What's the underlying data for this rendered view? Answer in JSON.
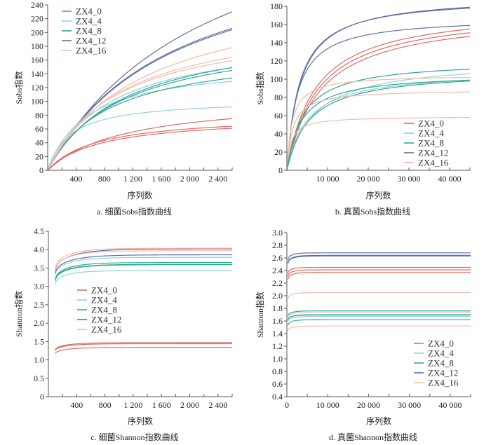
{
  "figure": {
    "groups": [
      {
        "name": "ZX4_0",
        "color": "#e06a62"
      },
      {
        "name": "ZX4_4",
        "color": "#8fd2df"
      },
      {
        "name": "ZX4_8",
        "color": "#2fa892"
      },
      {
        "name": "ZX4_12",
        "color": "#5f6fa3"
      },
      {
        "name": "ZX4_16",
        "color": "#f3bba9"
      }
    ]
  },
  "chart_data": [
    {
      "id": "a",
      "type": "line",
      "caption": "a.  细菌Sobs指数曲线",
      "xlabel": "序列数",
      "ylabel": "Sobs指数",
      "xlim": [
        0,
        2600
      ],
      "ylim": [
        0,
        240
      ],
      "xticks": [
        400,
        800,
        1200,
        1600,
        2000,
        2400
      ],
      "xtick_labels": [
        "400",
        "800",
        "1 200",
        "1 600",
        "2 000",
        "2 400"
      ],
      "xminor_step": 200,
      "yticks": [
        0,
        20,
        40,
        60,
        80,
        100,
        120,
        140,
        160,
        180,
        200,
        220,
        240
      ],
      "ytick_labels": [
        "0",
        "20",
        "40",
        "60",
        "80",
        "100",
        "120",
        "140",
        "160",
        "180",
        "200",
        "220",
        "240"
      ],
      "legend": "top-left",
      "curve_model": "rarefaction",
      "series": [
        {
          "group": "ZX4_0",
          "x_start": 0,
          "x_end": 2600,
          "y_end": 75,
          "k": 1100
        },
        {
          "group": "ZX4_0",
          "x_start": 0,
          "x_end": 2600,
          "y_end": 64,
          "k": 700
        },
        {
          "group": "ZX4_0",
          "x_start": 0,
          "x_end": 2600,
          "y_end": 61,
          "k": 750
        },
        {
          "group": "ZX4_4",
          "x_start": 0,
          "x_end": 2600,
          "y_end": 149,
          "k": 900
        },
        {
          "group": "ZX4_4",
          "x_start": 0,
          "x_end": 2600,
          "y_end": 129,
          "k": 550
        },
        {
          "group": "ZX4_4",
          "x_start": 0,
          "x_end": 2600,
          "y_end": 92,
          "k": 320
        },
        {
          "group": "ZX4_8",
          "x_start": 0,
          "x_end": 2600,
          "y_end": 149,
          "k": 1100
        },
        {
          "group": "ZX4_8",
          "x_start": 0,
          "x_end": 2600,
          "y_end": 145,
          "k": 1050
        },
        {
          "group": "ZX4_8",
          "x_start": 0,
          "x_end": 2600,
          "y_end": 134,
          "k": 850
        },
        {
          "group": "ZX4_12",
          "x_start": 0,
          "x_end": 2600,
          "y_end": 230,
          "k": 2300
        },
        {
          "group": "ZX4_12",
          "x_start": 0,
          "x_end": 2600,
          "y_end": 206,
          "k": 1750
        },
        {
          "group": "ZX4_12",
          "x_start": 0,
          "x_end": 2600,
          "y_end": 204,
          "k": 1750
        },
        {
          "group": "ZX4_16",
          "x_start": 0,
          "x_end": 2600,
          "y_end": 178,
          "k": 1350
        },
        {
          "group": "ZX4_16",
          "x_start": 0,
          "x_end": 2600,
          "y_end": 164,
          "k": 1050
        },
        {
          "group": "ZX4_16",
          "x_start": 0,
          "x_end": 2600,
          "y_end": 159,
          "k": 950
        }
      ]
    },
    {
      "id": "b",
      "type": "line",
      "caption": "b.  真菌Sobs指数曲线",
      "xlabel": "序列数",
      "ylabel": "Sobs指数",
      "xlim": [
        0,
        45000
      ],
      "ylim": [
        0,
        180
      ],
      "xticks": [
        10000,
        20000,
        30000,
        40000
      ],
      "xtick_labels": [
        "10 000",
        "20 000",
        "30 000",
        "40 000"
      ],
      "xminor_step": 5000,
      "yticks": [
        0,
        20,
        40,
        60,
        80,
        100,
        120,
        140,
        160,
        180
      ],
      "ytick_labels": [
        "0",
        "20",
        "40",
        "60",
        "80",
        "100",
        "120",
        "140",
        "160",
        "180"
      ],
      "legend": "bottom-right",
      "curve_model": "rarefaction",
      "series": [
        {
          "group": "ZX4_0",
          "x_start": 0,
          "x_end": 45000,
          "y_end": 155,
          "k": 7000
        },
        {
          "group": "ZX4_0",
          "x_start": 0,
          "x_end": 45000,
          "y_end": 151,
          "k": 7500
        },
        {
          "group": "ZX4_0",
          "x_start": 0,
          "x_end": 45000,
          "y_end": 147,
          "k": 8000
        },
        {
          "group": "ZX4_4",
          "x_start": 0,
          "x_end": 45000,
          "y_end": 106,
          "k": 6500
        },
        {
          "group": "ZX4_4",
          "x_start": 0,
          "x_end": 45000,
          "y_end": 99,
          "k": 5000
        },
        {
          "group": "ZX4_8",
          "x_start": 0,
          "x_end": 45000,
          "y_end": 111,
          "k": 4000
        },
        {
          "group": "ZX4_8",
          "x_start": 0,
          "x_end": 45000,
          "y_end": 99,
          "k": 3500
        },
        {
          "group": "ZX4_8",
          "x_start": 0,
          "x_end": 45000,
          "y_end": 98,
          "k": 5500
        },
        {
          "group": "ZX4_12",
          "x_start": 0,
          "x_end": 45000,
          "y_end": 179,
          "k": 3300
        },
        {
          "group": "ZX4_12",
          "x_start": 0,
          "x_end": 45000,
          "y_end": 178,
          "k": 3100
        },
        {
          "group": "ZX4_12",
          "x_start": 0,
          "x_end": 45000,
          "y_end": 159,
          "k": 2600
        },
        {
          "group": "ZX4_16",
          "x_start": 0,
          "x_end": 45000,
          "y_end": 102,
          "k": 1300
        },
        {
          "group": "ZX4_16",
          "x_start": 0,
          "x_end": 45000,
          "y_end": 86,
          "k": 1400
        },
        {
          "group": "ZX4_16",
          "x_start": 0,
          "x_end": 45000,
          "y_end": 58,
          "k": 1000
        }
      ]
    },
    {
      "id": "c",
      "type": "line",
      "caption": "c.  细菌Shannon指数曲线",
      "xlabel": "序列数",
      "ylabel": "Shannon指数",
      "xlim": [
        0,
        2600
      ],
      "ylim": [
        0,
        4.5
      ],
      "xticks": [
        400,
        800,
        1200,
        1600,
        2000,
        2400
      ],
      "xtick_labels": [
        "400",
        "800",
        "1 200",
        "1 600",
        "2 000",
        "2 400"
      ],
      "xminor_step": 200,
      "yticks": [
        0,
        0.5,
        1.0,
        1.5,
        2.0,
        2.5,
        3.0,
        3.5,
        4.0,
        4.5
      ],
      "ytick_labels": [
        "0",
        "0.5",
        "1.0",
        "1.5",
        "2.0",
        "2.5",
        "3.0",
        "3.5",
        "4.0",
        "4.5"
      ],
      "legend": "center-left",
      "curve_model": "plateau",
      "series": [
        {
          "group": "ZX4_0",
          "x_start": 100,
          "x_end": 2600,
          "y_start": 1.27,
          "y_end": 1.47,
          "k": 250
        },
        {
          "group": "ZX4_0",
          "x_start": 100,
          "x_end": 2600,
          "y_start": 1.25,
          "y_end": 1.44,
          "k": 250
        },
        {
          "group": "ZX4_0",
          "x_start": 100,
          "x_end": 2600,
          "y_start": 1.17,
          "y_end": 1.34,
          "k": 250
        },
        {
          "group": "ZX4_4",
          "x_start": 100,
          "x_end": 2600,
          "y_start": 3.32,
          "y_end": 3.79,
          "k": 300
        },
        {
          "group": "ZX4_4",
          "x_start": 100,
          "x_end": 2600,
          "y_start": 3.07,
          "y_end": 3.43,
          "k": 250
        },
        {
          "group": "ZX4_8",
          "x_start": 100,
          "x_end": 2600,
          "y_start": 3.18,
          "y_end": 3.65,
          "k": 280
        },
        {
          "group": "ZX4_8",
          "x_start": 100,
          "x_end": 2600,
          "y_start": 3.17,
          "y_end": 3.6,
          "k": 280
        },
        {
          "group": "ZX4_8",
          "x_start": 100,
          "x_end": 2600,
          "y_start": 3.15,
          "y_end": 3.59,
          "k": 280
        },
        {
          "group": "ZX4_12",
          "x_start": 100,
          "x_end": 2600,
          "y_start": 3.42,
          "y_end": 4.02,
          "k": 350
        },
        {
          "group": "ZX4_12",
          "x_start": 100,
          "x_end": 2600,
          "y_start": 3.35,
          "y_end": 3.86,
          "k": 330
        },
        {
          "group": "ZX4_16",
          "x_start": 100,
          "x_end": 2600,
          "y_start": 3.5,
          "y_end": 4.04,
          "k": 300
        },
        {
          "group": "ZX4_16",
          "x_start": 100,
          "x_end": 2600,
          "y_start": 3.44,
          "y_end": 3.97,
          "k": 300
        }
      ]
    },
    {
      "id": "d",
      "type": "line",
      "caption": "d.  真菌Shannon指数曲线",
      "xlabel": "序列数",
      "ylabel": "Shannon指数",
      "xlim": [
        0,
        45000
      ],
      "ylim": [
        0.4,
        3.0
      ],
      "xticks": [
        0,
        10000,
        20000,
        30000,
        40000
      ],
      "xtick_labels": [
        "0",
        "10 000",
        "20 000",
        "30 000",
        "40 000"
      ],
      "xminor_step": 5000,
      "yticks": [
        0.4,
        0.6,
        0.8,
        1.0,
        1.2,
        1.4,
        1.6,
        1.8,
        2.0,
        2.2,
        2.4,
        2.6,
        2.8,
        3.0
      ],
      "ytick_labels": [
        "0.4",
        "0.6",
        "0.8",
        "1.0",
        "1.2",
        "1.4",
        "1.6",
        "1.8",
        "2.0",
        "2.2",
        "2.4",
        "2.6",
        "2.8",
        "3.0"
      ],
      "legend": "bottom-right",
      "curve_model": "plateau",
      "series": [
        {
          "group": "ZX4_0",
          "x_start": 300,
          "x_end": 45000,
          "y_start": 2.36,
          "y_end": 2.45,
          "k": 1500
        },
        {
          "group": "ZX4_0",
          "x_start": 300,
          "x_end": 45000,
          "y_start": 2.31,
          "y_end": 2.41,
          "k": 1500
        },
        {
          "group": "ZX4_0",
          "x_start": 300,
          "x_end": 45000,
          "y_start": 2.26,
          "y_end": 2.37,
          "k": 1500
        },
        {
          "group": "ZX4_4",
          "x_start": 300,
          "x_end": 45000,
          "y_start": 1.63,
          "y_end": 1.69,
          "k": 1500
        },
        {
          "group": "ZX4_4",
          "x_start": 300,
          "x_end": 45000,
          "y_start": 1.6,
          "y_end": 1.67,
          "k": 1500
        },
        {
          "group": "ZX4_8",
          "x_start": 300,
          "x_end": 45000,
          "y_start": 1.68,
          "y_end": 1.76,
          "k": 1500
        },
        {
          "group": "ZX4_8",
          "x_start": 300,
          "x_end": 45000,
          "y_start": 1.62,
          "y_end": 1.7,
          "k": 1500
        },
        {
          "group": "ZX4_8",
          "x_start": 300,
          "x_end": 45000,
          "y_start": 1.53,
          "y_end": 1.62,
          "k": 1500
        },
        {
          "group": "ZX4_12",
          "x_start": 300,
          "x_end": 45000,
          "y_start": 2.57,
          "y_end": 2.68,
          "k": 1500
        },
        {
          "group": "ZX4_12",
          "x_start": 300,
          "x_end": 45000,
          "y_start": 2.52,
          "y_end": 2.64,
          "k": 1600
        },
        {
          "group": "ZX4_12",
          "x_start": 300,
          "x_end": 45000,
          "y_start": 2.51,
          "y_end": 2.63,
          "k": 1600
        },
        {
          "group": "ZX4_16",
          "x_start": 300,
          "x_end": 45000,
          "y_start": 1.95,
          "y_end": 2.05,
          "k": 1500
        },
        {
          "group": "ZX4_16",
          "x_start": 300,
          "x_end": 45000,
          "y_start": 1.66,
          "y_end": 1.74,
          "k": 1500
        },
        {
          "group": "ZX4_16",
          "x_start": 300,
          "x_end": 45000,
          "y_start": 1.45,
          "y_end": 1.52,
          "k": 1500
        }
      ]
    }
  ]
}
